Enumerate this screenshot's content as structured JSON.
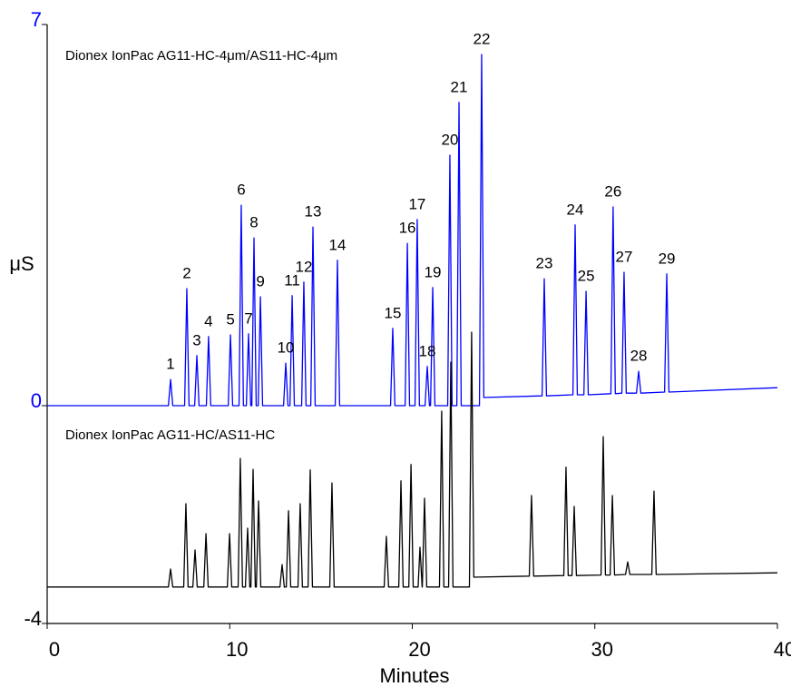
{
  "chart_data": {
    "type": "line",
    "x_label": "Minutes",
    "y_label": "μS",
    "xlim": [
      0,
      40
    ],
    "xticks": [
      0,
      10,
      20,
      30,
      40
    ],
    "ylim": [
      -4,
      7
    ],
    "yticks": [
      -4,
      0,
      7
    ],
    "ytick_colors": [
      "#000000",
      "#0000ff",
      "#0000ff"
    ],
    "series": [
      {
        "name": "Dionex IonPac AG11-HC-4μm/AS11-HC-4μm",
        "color": "#0000ff",
        "x": [
          0,
          6.64,
          6.76,
          6.88,
          7.53,
          7.65,
          7.77,
          8.08,
          8.2,
          8.32,
          8.72,
          8.84,
          8.96,
          9.92,
          10.04,
          10.16,
          10.51,
          10.63,
          10.75,
          10.91,
          11.03,
          11.15,
          11.21,
          11.33,
          11.45,
          11.56,
          11.68,
          11.8,
          12.95,
          13.07,
          13.19,
          13.3,
          13.42,
          13.54,
          13.94,
          14.06,
          14.18,
          14.44,
          14.56,
          14.68,
          15.78,
          15.9,
          16.02,
          18.81,
          18.93,
          19.05,
          19.61,
          19.73,
          19.85,
          20.15,
          20.27,
          20.39,
          20.7,
          20.82,
          20.94,
          21.0,
          21.12,
          21.24,
          21.94,
          22.06,
          22.18,
          22.44,
          22.56,
          22.68,
          23.68,
          23.8,
          23.92,
          27.11,
          27.23,
          27.35,
          28.8,
          28.92,
          29.04,
          29.4,
          29.52,
          29.64,
          30.88,
          31.0,
          31.12,
          31.48,
          31.6,
          31.72,
          32.28,
          32.4,
          32.52,
          33.82,
          33.94,
          34.06,
          40
        ],
        "values": [
          0,
          0,
          0.48,
          0,
          0,
          2.15,
          0,
          0,
          0.92,
          0,
          0,
          1.27,
          0,
          0,
          1.3,
          0,
          0,
          3.68,
          0,
          0,
          1.32,
          0,
          0,
          3.08,
          0,
          0,
          2.0,
          0,
          0,
          0.78,
          0,
          0,
          2.02,
          0,
          0,
          2.27,
          0,
          0,
          3.28,
          0,
          0,
          2.67,
          0,
          0,
          1.42,
          0,
          0,
          2.98,
          0,
          0,
          3.42,
          0,
          0,
          0.72,
          0,
          0,
          2.17,
          0,
          0,
          4.6,
          0,
          0,
          5.57,
          0,
          0,
          6.45,
          0.15,
          0.18,
          2.33,
          0.18,
          0.2,
          3.32,
          0.2,
          0.2,
          2.1,
          0.2,
          0.22,
          3.65,
          0.22,
          0.23,
          2.45,
          0.23,
          0.23,
          0.63,
          0.23,
          0.25,
          2.42,
          0.25,
          0.33
        ],
        "point_labels": [
          null,
          null,
          "1",
          null,
          null,
          "2",
          null,
          null,
          "3",
          null,
          null,
          "4",
          null,
          null,
          "5",
          null,
          null,
          "6",
          null,
          null,
          "7",
          null,
          null,
          "8",
          null,
          null,
          "9",
          null,
          null,
          "10",
          null,
          null,
          "11",
          null,
          null,
          "12",
          null,
          null,
          "13",
          null,
          null,
          "14",
          null,
          null,
          "15",
          null,
          null,
          "16",
          null,
          null,
          "17",
          null,
          null,
          "18",
          null,
          null,
          "19",
          null,
          null,
          "20",
          null,
          null,
          "21",
          null,
          null,
          "22",
          null,
          null,
          "23",
          null,
          null,
          "24",
          null,
          null,
          "25",
          null,
          null,
          "26",
          null,
          null,
          "27",
          null,
          null,
          "28",
          null,
          null,
          "29",
          null,
          null
        ]
      },
      {
        "name": "Dionex IonPac AG11-HC/AS11-HC",
        "color": "#000000",
        "x": [
          0,
          6.64,
          6.76,
          6.88,
          7.48,
          7.6,
          7.72,
          7.98,
          8.1,
          8.22,
          8.58,
          8.7,
          8.82,
          9.87,
          9.99,
          10.11,
          10.46,
          10.58,
          10.7,
          10.86,
          10.98,
          11.1,
          11.16,
          11.28,
          11.4,
          11.46,
          11.58,
          11.7,
          12.75,
          12.87,
          12.99,
          13.1,
          13.22,
          13.34,
          13.74,
          13.86,
          13.98,
          14.29,
          14.41,
          14.53,
          15.48,
          15.6,
          15.72,
          18.46,
          18.58,
          18.7,
          19.26,
          19.38,
          19.5,
          19.81,
          19.93,
          20.05,
          20.32,
          20.42,
          20.54,
          20.55,
          20.67,
          20.79,
          21.49,
          21.61,
          21.73,
          21.99,
          22.11,
          22.23,
          23.13,
          23.25,
          23.37,
          26.41,
          26.53,
          26.65,
          28.3,
          28.42,
          28.54,
          28.75,
          28.87,
          28.99,
          30.34,
          30.46,
          30.58,
          30.84,
          30.96,
          31.08,
          31.68,
          31.8,
          31.92,
          33.12,
          33.24,
          33.36,
          40
        ],
        "values": [
          -3.33,
          -3.33,
          -3.0,
          -3.33,
          -3.33,
          -1.8,
          -3.33,
          -3.33,
          -2.65,
          -3.33,
          -3.33,
          -2.35,
          -3.33,
          -3.33,
          -2.35,
          -3.33,
          -3.33,
          -0.97,
          -3.33,
          -3.33,
          -2.25,
          -3.33,
          -3.33,
          -1.17,
          -3.33,
          -3.33,
          -1.75,
          -3.33,
          -3.33,
          -2.92,
          -3.33,
          -3.33,
          -1.93,
          -3.33,
          -3.33,
          -1.8,
          -3.33,
          -3.33,
          -1.18,
          -3.33,
          -3.33,
          -1.42,
          -3.33,
          -3.33,
          -2.4,
          -3.33,
          -3.33,
          -1.38,
          -3.33,
          -3.33,
          -1.08,
          -3.33,
          -3.33,
          -2.6,
          -3.33,
          -3.33,
          -1.7,
          -3.33,
          -3.33,
          -0.1,
          -3.33,
          -3.33,
          0.8,
          -3.33,
          -3.33,
          1.35,
          -3.15,
          -3.13,
          -1.65,
          -3.13,
          -3.12,
          -1.13,
          -3.12,
          -3.12,
          -1.85,
          -3.12,
          -3.11,
          -0.57,
          -3.11,
          -3.11,
          -1.65,
          -3.11,
          -3.1,
          -2.87,
          -3.1,
          -3.1,
          -1.57,
          -3.1,
          -3.07
        ]
      }
    ]
  }
}
